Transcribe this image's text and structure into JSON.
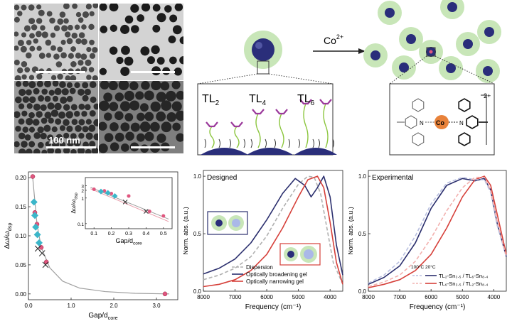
{
  "tem": {
    "scale_label": "100 nm"
  },
  "scheme": {
    "reagent": "Co",
    "reagent_charge": "2+",
    "ligands": [
      {
        "base": "TL",
        "sub": "2"
      },
      {
        "base": "TL",
        "sub": "4"
      },
      {
        "base": "TL",
        "sub": "6"
      }
    ],
    "complex": {
      "n_label": "N",
      "co_label": "Co",
      "charge": "2+"
    }
  },
  "colors": {
    "particle": "#2a2e7a",
    "shell": "#c8e6b8",
    "ligand_purple": "#9b3a9b",
    "ligand_green": "#8cc63f",
    "cobalt": "#e8823a",
    "navy": "#2b2f6e",
    "red": "#d6403a",
    "pink": "#e0567f",
    "cyan": "#3bb6c9"
  },
  "chart_data": [
    {
      "type": "scatter",
      "ylabel": "Δω/ω",
      "ylabel_sub": "dsp",
      "xlabel": "Gap/d",
      "xlabel_sub": "core",
      "xlim": [
        0,
        3.5
      ],
      "ylim": [
        -0.01,
        0.21
      ],
      "xticks": [
        "0.0",
        "1.0",
        "2.0",
        "3.0"
      ],
      "yticks": [
        "0.00",
        "0.05",
        "0.10",
        "0.15",
        "0.20"
      ],
      "series": [
        {
          "marker": "circle",
          "x": [
            0.1,
            0.15,
            0.2,
            0.3,
            0.42,
            3.2
          ],
          "y": [
            0.202,
            0.14,
            0.12,
            0.08,
            0.055,
            0.0
          ]
        },
        {
          "marker": "diamond",
          "x": [
            0.13,
            0.15,
            0.17,
            0.21,
            0.25
          ],
          "y": [
            0.158,
            0.135,
            0.115,
            0.102,
            0.088
          ]
        },
        {
          "marker": "cross",
          "x": [
            0.22,
            0.32,
            0.4
          ],
          "y": [
            0.078,
            0.07,
            0.05
          ]
        }
      ],
      "fit": {
        "x": [
          0.1,
          0.2,
          0.3,
          0.5,
          0.8,
          1.2,
          1.8,
          2.5,
          3.3
        ],
        "y": [
          0.2,
          0.12,
          0.08,
          0.045,
          0.022,
          0.01,
          0.004,
          0.001,
          0.0
        ]
      },
      "inset": {
        "ylabel": "Δω/ω",
        "ylabel_sub": "dsp",
        "xlabel": "Gap/d",
        "xlabel_sub": "core",
        "xlim": [
          0.05,
          0.55
        ],
        "xticks": [
          "0.1",
          "0.2",
          "0.3",
          "0.4",
          "0.5"
        ],
        "yticks": [
          "0.1",
          "1",
          "2",
          "3"
        ],
        "circles": {
          "x": [
            0.1,
            0.16,
            0.2,
            0.3,
            0.42,
            0.5
          ],
          "y": [
            2.2,
            1.9,
            1.5,
            1.2,
            0.3,
            0.2
          ]
        },
        "diamonds": {
          "x": [
            0.14,
            0.18,
            0.22
          ],
          "y": [
            1.8,
            1.6,
            1.2
          ]
        },
        "crosses": {
          "x": [
            0.28,
            0.4
          ],
          "y": [
            0.7,
            0.3
          ]
        }
      }
    },
    {
      "type": "line",
      "title": "Designed",
      "ylabel": "Norm. abs. (a.u.)",
      "xlabel": "Frequency (cm⁻¹)",
      "xlim": [
        8000,
        3600
      ],
      "ylim": [
        0,
        1.05
      ],
      "xticks": [
        "8000",
        "7000",
        "6000",
        "5000",
        "4000"
      ],
      "yticks": [
        "0.0",
        "0.5",
        "1.0"
      ],
      "series": [
        {
          "name": "Dispersion",
          "style": "dashed",
          "color": "#b0b0b0",
          "x": [
            8000,
            7500,
            7000,
            6500,
            6000,
            5500,
            5000,
            4700,
            4500,
            4300,
            4100,
            3900,
            3600
          ],
          "y": [
            0.1,
            0.14,
            0.2,
            0.3,
            0.48,
            0.72,
            0.93,
            1.0,
            0.99,
            0.85,
            0.55,
            0.25,
            0.06
          ]
        },
        {
          "name": "Optically broadening gel",
          "style": "solid",
          "color": "#2b2f6e",
          "x": [
            8000,
            7500,
            7000,
            6500,
            6000,
            5500,
            5100,
            4800,
            4600,
            4400,
            4200,
            4000,
            3800,
            3600
          ],
          "y": [
            0.15,
            0.2,
            0.28,
            0.42,
            0.62,
            0.85,
            0.98,
            0.92,
            0.82,
            0.9,
            1.0,
            0.82,
            0.4,
            0.14
          ]
        },
        {
          "name": "Optically narrowing gel",
          "style": "solid",
          "color": "#d6403a",
          "x": [
            8000,
            7500,
            7000,
            6500,
            6000,
            5500,
            5000,
            4700,
            4400,
            4200,
            4000,
            3800,
            3600
          ],
          "y": [
            0.04,
            0.06,
            0.1,
            0.18,
            0.32,
            0.55,
            0.82,
            0.97,
            1.0,
            0.9,
            0.6,
            0.25,
            0.06
          ]
        }
      ]
    },
    {
      "type": "line",
      "title": "Experimental",
      "ylabel": "Norm. abs. (a.u.)",
      "xlabel": "Frequency (cm⁻¹)",
      "xlim": [
        8000,
        3600
      ],
      "ylim": [
        0,
        1.05
      ],
      "xticks": [
        "8000",
        "7000",
        "6000",
        "5000",
        "4000"
      ],
      "yticks": [
        "0.0",
        "0.5",
        "1.0"
      ],
      "temp_labels": [
        "100°C",
        "20°C"
      ],
      "series": [
        {
          "name": "TL₂-Sn₃.₅ / TL₆-Sn₈.₄",
          "style": "solid",
          "color": "#2b2f6e",
          "x": [
            8000,
            7500,
            7000,
            6500,
            6000,
            5500,
            5000,
            4600,
            4300,
            4100,
            3900,
            3600
          ],
          "y": [
            0.06,
            0.12,
            0.22,
            0.42,
            0.72,
            0.92,
            0.98,
            0.96,
            0.98,
            0.88,
            0.6,
            0.3
          ]
        },
        {
          "name": "TL₆-Sn₃.₅ / TL₂-Sn₈.₄",
          "style": "solid",
          "color": "#d6403a",
          "x": [
            8000,
            7500,
            7000,
            6500,
            6000,
            5500,
            5000,
            4600,
            4300,
            4100,
            3900,
            3600
          ],
          "y": [
            0.03,
            0.06,
            0.1,
            0.18,
            0.32,
            0.55,
            0.82,
            0.97,
            1.0,
            0.92,
            0.68,
            0.32
          ]
        },
        {
          "name": "",
          "style": "dashed",
          "color": "#b8bfe0",
          "x": [
            8000,
            7500,
            7000,
            6500,
            6000,
            5500,
            5000,
            4600,
            4300,
            4100,
            3900,
            3600
          ],
          "y": [
            0.07,
            0.14,
            0.26,
            0.48,
            0.76,
            0.94,
            0.99,
            0.97,
            0.97,
            0.86,
            0.58,
            0.3
          ]
        },
        {
          "name": "",
          "style": "dashed",
          "color": "#f2b0ae",
          "x": [
            8000,
            7500,
            7000,
            6500,
            6000,
            5500,
            5000,
            4600,
            4300,
            4100,
            3900,
            3600
          ],
          "y": [
            0.04,
            0.08,
            0.14,
            0.26,
            0.46,
            0.7,
            0.9,
            0.99,
            0.99,
            0.88,
            0.62,
            0.3
          ]
        }
      ]
    }
  ]
}
